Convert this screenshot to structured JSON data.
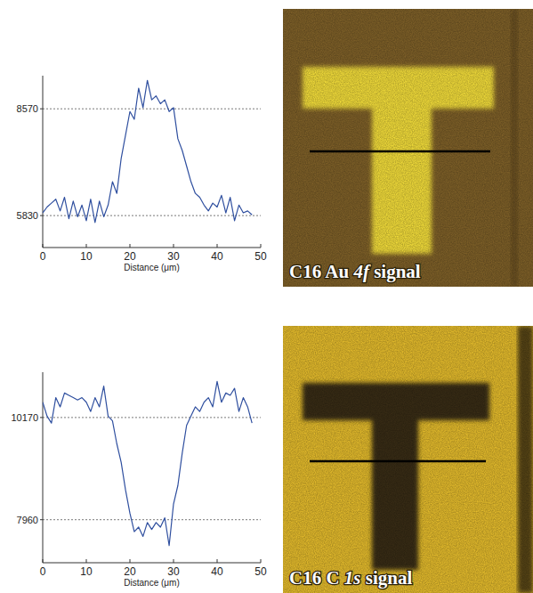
{
  "chart_data": [
    {
      "type": "line",
      "x_label": "Distance (μm)",
      "annotations": [
        "C16 Au 4f signal"
      ],
      "x": [
        0,
        1,
        2,
        3,
        4,
        5,
        6,
        7,
        8,
        9,
        10,
        11,
        12,
        13,
        14,
        15,
        16,
        17,
        18,
        19,
        20,
        21,
        22,
        23,
        24,
        25,
        26,
        27,
        28,
        29,
        30,
        31,
        32,
        33,
        34,
        35,
        36,
        37,
        38,
        39,
        40,
        41,
        42,
        43,
        44,
        45,
        46,
        47,
        48
      ],
      "values": [
        5900,
        6050,
        6150,
        6250,
        5950,
        6300,
        5750,
        6200,
        5800,
        6100,
        5700,
        6250,
        5650,
        6200,
        5800,
        6100,
        6700,
        6400,
        7300,
        7900,
        8500,
        8300,
        9100,
        8600,
        9300,
        8800,
        8900,
        8700,
        8800,
        8500,
        8600,
        7800,
        7500,
        7100,
        6700,
        6400,
        6300,
        6100,
        5950,
        6150,
        6050,
        6350,
        5900,
        6300,
        5700,
        6100,
        5900,
        5950,
        5850
      ],
      "color": "#2f4f9f",
      "xlim": [
        0,
        50
      ],
      "xticks": [
        0,
        10,
        20,
        30,
        40,
        50
      ],
      "ylim": [
        5010,
        9420
      ],
      "yticks": [
        5830,
        8570
      ],
      "grid": true
    },
    {
      "type": "line",
      "x_label": "Distance (μm)",
      "annotations": [
        "C16 C 1s signal"
      ],
      "x": [
        0,
        1,
        2,
        3,
        4,
        5,
        6,
        7,
        8,
        9,
        10,
        11,
        12,
        13,
        14,
        15,
        16,
        17,
        18,
        19,
        20,
        21,
        22,
        23,
        24,
        25,
        26,
        27,
        28,
        29,
        30,
        31,
        32,
        33,
        34,
        35,
        36,
        37,
        38,
        39,
        40,
        41,
        42,
        43,
        44,
        45,
        46,
        47,
        48
      ],
      "values": [
        10500,
        10200,
        10050,
        10600,
        10400,
        10700,
        10650,
        10600,
        10550,
        10600,
        10500,
        10300,
        10600,
        10400,
        10850,
        10200,
        10100,
        9600,
        9200,
        8600,
        8100,
        7700,
        7800,
        7600,
        7900,
        7750,
        7900,
        7800,
        8000,
        7400,
        8300,
        8700,
        9400,
        10000,
        10200,
        10400,
        10300,
        10500,
        10600,
        10400,
        10950,
        10500,
        10700,
        10650,
        10800,
        10300,
        10600,
        10400,
        10050
      ],
      "color": "#2f4f9f",
      "xlim": [
        0,
        50
      ],
      "xticks": [
        0,
        10,
        20,
        30,
        40,
        50
      ],
      "ylim": [
        7030,
        11150
      ],
      "yticks": [
        7960,
        10170
      ],
      "grid": true
    }
  ]
}
